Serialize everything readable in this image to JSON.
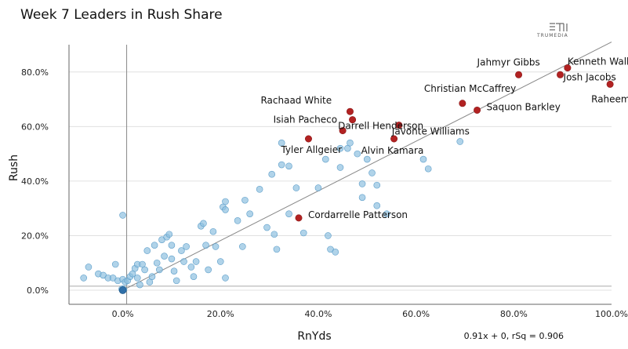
{
  "chart_data": {
    "type": "scatter",
    "title": "Week 7 Leaders in Rush Share",
    "xlabel": "RnYds",
    "ylabel": "Rush",
    "xlim": [
      -0.11,
      1.0
    ],
    "ylim": [
      -0.02,
      0.9
    ],
    "x_ticks": [
      0,
      0.2,
      0.4,
      0.6,
      0.8,
      1.0
    ],
    "x_tick_labels": [
      "0.0%",
      "20.0%",
      "40.0%",
      "60.0%",
      "80.0%",
      "100.0%"
    ],
    "y_ticks": [
      0,
      0.2,
      0.4,
      0.6,
      0.8
    ],
    "y_tick_labels": [
      "0.0%",
      "20.0%",
      "40.0%",
      "60.0%",
      "80.0%"
    ],
    "grid": "horizontal",
    "trendline": {
      "slope": 0.91,
      "intercept": 0,
      "label": "0.91x + 0, rSq = 0.906"
    },
    "colors": {
      "highlight": "#b22222",
      "other": "#8fc0e0",
      "other_stroke": "#5a9cc8",
      "trend": "#888888",
      "grid": "#e0e0e0"
    },
    "logo": "TRUMEDIA",
    "highlighted": [
      {
        "name": "Jahmyr Gibbs",
        "x": 0.81,
        "y": 0.79
      },
      {
        "name": "Kenneth Walker",
        "x": 0.91,
        "y": 0.815
      },
      {
        "name": "Josh Jacobs",
        "x": 0.895,
        "y": 0.79
      },
      {
        "name": "Raheem Mostert",
        "x": 0.997,
        "y": 0.755
      },
      {
        "name": "Christian McCaffrey",
        "x": 0.695,
        "y": 0.685
      },
      {
        "name": "Saquon Barkley",
        "x": 0.725,
        "y": 0.66
      },
      {
        "name": "Rachaad White",
        "x": 0.465,
        "y": 0.655
      },
      {
        "name": "Isiah Pacheco",
        "x": 0.47,
        "y": 0.625
      },
      {
        "name": "Javonte Williams",
        "x": 0.565,
        "y": 0.605
      },
      {
        "name": "Darrell Henderson",
        "x": 0.45,
        "y": 0.585
      },
      {
        "name": "Alvin Kamara",
        "x": 0.555,
        "y": 0.555
      },
      {
        "name": "Tyler Allgeier",
        "x": 0.38,
        "y": 0.555
      },
      {
        "name": "Cordarrelle Patterson",
        "x": 0.36,
        "y": 0.265
      }
    ],
    "others": [
      [
        0.0,
        0.0
      ],
      [
        0.0,
        0.005
      ],
      [
        0.002,
        0.002
      ],
      [
        -0.002,
        0.004
      ],
      [
        0.001,
        0.003
      ],
      [
        -0.07,
        0.085
      ],
      [
        -0.08,
        0.045
      ],
      [
        -0.05,
        0.06
      ],
      [
        -0.04,
        0.055
      ],
      [
        -0.03,
        0.045
      ],
      [
        -0.02,
        0.045
      ],
      [
        -0.015,
        0.095
      ],
      [
        -0.01,
        0.035
      ],
      [
        0.0,
        0.275
      ],
      [
        0.0,
        0.04
      ],
      [
        0.005,
        0.03
      ],
      [
        0.01,
        0.035
      ],
      [
        0.015,
        0.05
      ],
      [
        0.02,
        0.06
      ],
      [
        0.025,
        0.08
      ],
      [
        0.03,
        0.095
      ],
      [
        0.03,
        0.045
      ],
      [
        0.035,
        0.02
      ],
      [
        0.04,
        0.095
      ],
      [
        0.045,
        0.075
      ],
      [
        0.05,
        0.145
      ],
      [
        0.055,
        0.03
      ],
      [
        0.06,
        0.05
      ],
      [
        0.065,
        0.165
      ],
      [
        0.07,
        0.1
      ],
      [
        0.075,
        0.075
      ],
      [
        0.08,
        0.185
      ],
      [
        0.085,
        0.125
      ],
      [
        0.09,
        0.195
      ],
      [
        0.095,
        0.205
      ],
      [
        0.1,
        0.165
      ],
      [
        0.1,
        0.115
      ],
      [
        0.105,
        0.07
      ],
      [
        0.11,
        0.035
      ],
      [
        0.12,
        0.145
      ],
      [
        0.125,
        0.105
      ],
      [
        0.13,
        0.16
      ],
      [
        0.14,
        0.085
      ],
      [
        0.145,
        0.05
      ],
      [
        0.15,
        0.105
      ],
      [
        0.16,
        0.235
      ],
      [
        0.165,
        0.245
      ],
      [
        0.17,
        0.165
      ],
      [
        0.175,
        0.075
      ],
      [
        0.185,
        0.215
      ],
      [
        0.19,
        0.16
      ],
      [
        0.2,
        0.105
      ],
      [
        0.205,
        0.305
      ],
      [
        0.21,
        0.295
      ],
      [
        0.21,
        0.325
      ],
      [
        0.21,
        0.045
      ],
      [
        0.235,
        0.255
      ],
      [
        0.245,
        0.16
      ],
      [
        0.25,
        0.33
      ],
      [
        0.26,
        0.28
      ],
      [
        0.28,
        0.37
      ],
      [
        0.295,
        0.23
      ],
      [
        0.305,
        0.425
      ],
      [
        0.31,
        0.205
      ],
      [
        0.315,
        0.15
      ],
      [
        0.325,
        0.46
      ],
      [
        0.325,
        0.54
      ],
      [
        0.34,
        0.455
      ],
      [
        0.34,
        0.28
      ],
      [
        0.355,
        0.375
      ],
      [
        0.37,
        0.21
      ],
      [
        0.4,
        0.375
      ],
      [
        0.415,
        0.48
      ],
      [
        0.42,
        0.2
      ],
      [
        0.425,
        0.15
      ],
      [
        0.435,
        0.14
      ],
      [
        0.445,
        0.52
      ],
      [
        0.445,
        0.45
      ],
      [
        0.46,
        0.52
      ],
      [
        0.465,
        0.54
      ],
      [
        0.48,
        0.5
      ],
      [
        0.49,
        0.39
      ],
      [
        0.49,
        0.34
      ],
      [
        0.5,
        0.48
      ],
      [
        0.51,
        0.43
      ],
      [
        0.52,
        0.385
      ],
      [
        0.52,
        0.31
      ],
      [
        0.54,
        0.28
      ],
      [
        0.615,
        0.48
      ],
      [
        0.625,
        0.445
      ],
      [
        0.69,
        0.545
      ]
    ]
  }
}
